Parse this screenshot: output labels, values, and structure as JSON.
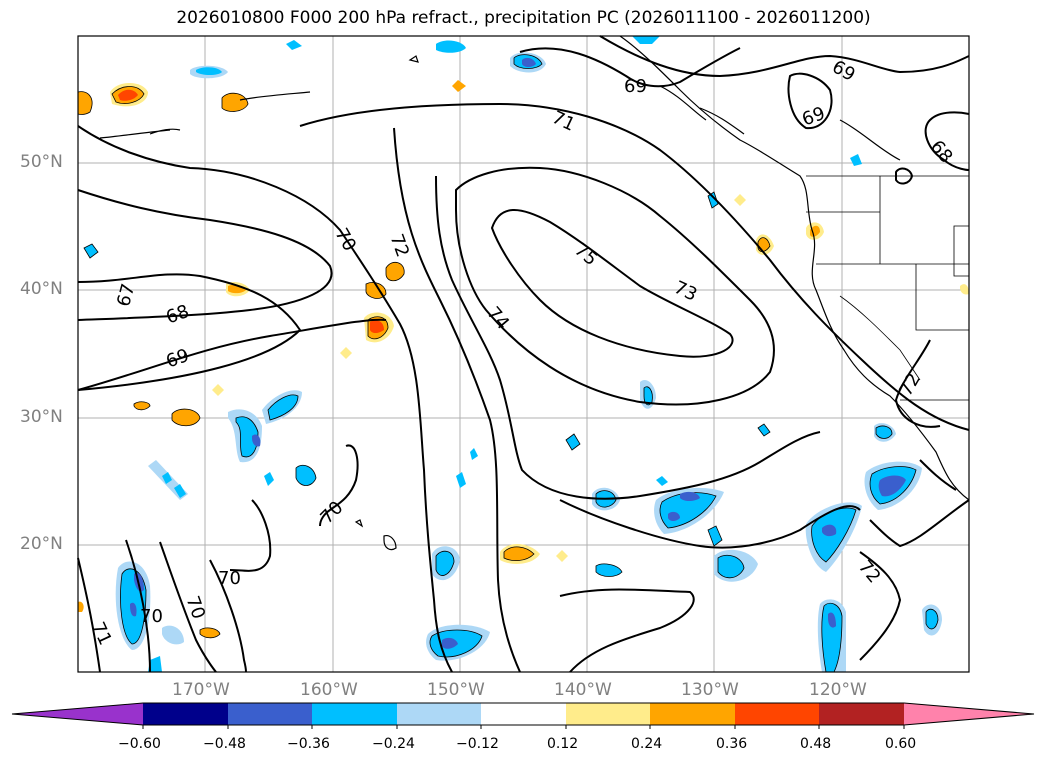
{
  "title": "2026010800 F000 200 hPa refract., precipitation PC (2026011100 - 2026011200)",
  "map": {
    "region": "North-East Pacific",
    "lat_range": [
      10,
      60
    ],
    "lon_range": [
      -180,
      -110
    ],
    "lat_labels": [
      "50°N",
      "40°N",
      "30°N",
      "20°N"
    ],
    "lon_labels": [
      "170°W",
      "160°W",
      "150°W",
      "140°W",
      "130°W",
      "120°W"
    ],
    "contour_labels": [
      "69",
      "69",
      "69",
      "68",
      "71",
      "70",
      "72",
      "67",
      "68",
      "69",
      "75",
      "73",
      "74",
      "70",
      "70",
      "70",
      "70",
      "71",
      "72"
    ]
  },
  "colorbar": {
    "tick_labels": [
      "−0.60",
      "−0.48",
      "−0.36",
      "−0.24",
      "−0.12",
      "0.12",
      "0.24",
      "0.36",
      "0.48",
      "0.60"
    ],
    "colors": [
      "#9932cc",
      "#00008b",
      "#3a5fcd",
      "#00bfff",
      "#add8f6",
      "#ffffff",
      "#ffec8b",
      "#ffa500",
      "#ff4500",
      "#b22222",
      "#ff82ab"
    ],
    "extend": "both"
  }
}
